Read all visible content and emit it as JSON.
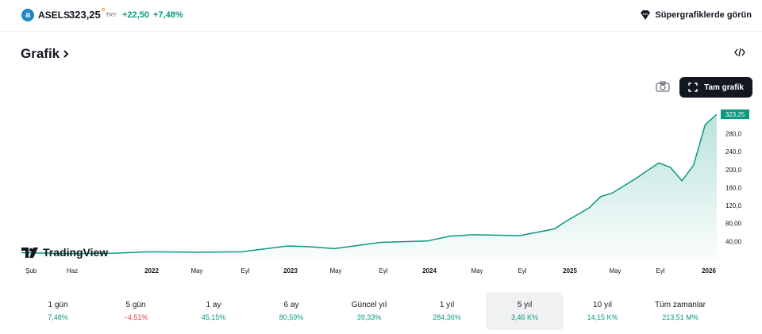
{
  "header": {
    "logo_letter": "a",
    "symbol": "ASELS",
    "price": "323,25",
    "currency": "TRY",
    "change": "+22,50",
    "change_percent": "+7,48%",
    "supercharts_link": "Süpergrafiklerde görün",
    "accent_positive": "#089981",
    "accent_negative": "#f23645"
  },
  "section": {
    "title": "Grafik",
    "embed_icon": "code-icon",
    "fullscreen_label": "Tam grafik",
    "snapshot_icon": "camera-icon"
  },
  "chart_data": {
    "type": "area",
    "current_price_label": "323,25",
    "y_ticks": [
      "280,0",
      "240,0",
      "200,0",
      "160,0",
      "120,0",
      "80,00",
      "40,00"
    ],
    "x_ticks": [
      "Şub",
      "Haz",
      "2022",
      "May",
      "Eyl",
      "2023",
      "May",
      "Eyl",
      "2024",
      "May",
      "Eyl",
      "2025",
      "May",
      "Eyl",
      "2026"
    ],
    "x_ticks_bold": [
      "2022",
      "2023",
      "2024",
      "2025",
      "2026"
    ],
    "ylim": [
      0,
      323.25
    ],
    "x": [
      "2021-02",
      "2021-06",
      "2021-10",
      "2022-01",
      "2022-05",
      "2022-09",
      "2023-01",
      "2023-03",
      "2023-05",
      "2023-09",
      "2024-01",
      "2024-03",
      "2024-05",
      "2024-09",
      "2024-12",
      "2025-01",
      "2025-03",
      "2025-04",
      "2025-05",
      "2025-07",
      "2025-09",
      "2025-10",
      "2025-11",
      "2025-12",
      "2026-01",
      "2026-02"
    ],
    "values": [
      15,
      13,
      14,
      17,
      16,
      17,
      30,
      28,
      24,
      38,
      41,
      52,
      55,
      53,
      68,
      85,
      115,
      140,
      148,
      180,
      215,
      205,
      175,
      210,
      300,
      323.25
    ],
    "line_color": "#089981",
    "watermark": "TradingView"
  },
  "periods": [
    {
      "label": "1 gün",
      "value": "7,48%",
      "sign": "pos"
    },
    {
      "label": "5 gün",
      "value": "−4,51%",
      "sign": "neg"
    },
    {
      "label": "1 ay",
      "value": "45,15%",
      "sign": "pos"
    },
    {
      "label": "6 ay",
      "value": "80,59%",
      "sign": "pos"
    },
    {
      "label": "Güncel yıl",
      "value": "39,33%",
      "sign": "pos"
    },
    {
      "label": "1 yıl",
      "value": "284,36%",
      "sign": "pos"
    },
    {
      "label": "5 yıl",
      "value": "3,46 K%",
      "sign": "pos",
      "active": true
    },
    {
      "label": "10 yıl",
      "value": "14,15 K%",
      "sign": "pos"
    },
    {
      "label": "Tüm zamanlar",
      "value": "213,51 M%",
      "sign": "pos"
    }
  ]
}
